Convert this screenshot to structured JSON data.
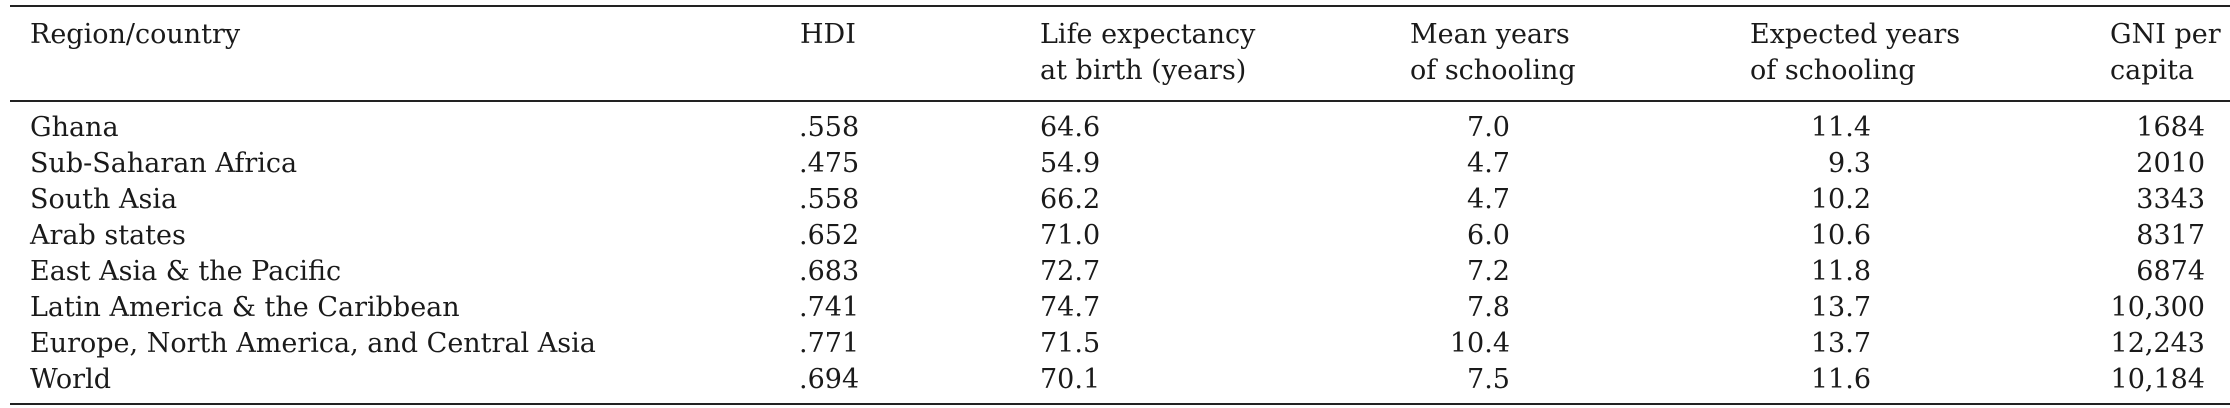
{
  "table": {
    "headers": {
      "region": "Region/country",
      "hdi": "HDI",
      "life_1": "Life expectancy",
      "life_2": "at birth (years)",
      "mys_1": "Mean years",
      "mys_2": "of schooling",
      "eys_1": "Expected years",
      "eys_2": "of schooling",
      "gni_1": "GNI per",
      "gni_2": "capita"
    },
    "rows": [
      {
        "region": "Ghana",
        "hdi": ".558",
        "life": "64.6",
        "mys": "7.0",
        "eys": "11.4",
        "gni": "1684"
      },
      {
        "region": "Sub-Saharan Africa",
        "hdi": ".475",
        "life": "54.9",
        "mys": "4.7",
        "eys": "9.3",
        "gni": "2010"
      },
      {
        "region": "South Asia",
        "hdi": ".558",
        "life": "66.2",
        "mys": "4.7",
        "eys": "10.2",
        "gni": "3343"
      },
      {
        "region": "Arab states",
        "hdi": ".652",
        "life": "71.0",
        "mys": "6.0",
        "eys": "10.6",
        "gni": "8317"
      },
      {
        "region": "East Asia & the Pacific",
        "hdi": ".683",
        "life": "72.7",
        "mys": "7.2",
        "eys": "11.8",
        "gni": "6874"
      },
      {
        "region": "Latin America & the Caribbean",
        "hdi": ".741",
        "life": "74.7",
        "mys": "7.8",
        "eys": "13.7",
        "gni": "10,300"
      },
      {
        "region": "Europe, North America, and Central Asia",
        "hdi": ".771",
        "life": "71.5",
        "mys": "10.4",
        "eys": "13.7",
        "gni": "12,243"
      },
      {
        "region": "World",
        "hdi": ".694",
        "life": "70.1",
        "mys": "7.5",
        "eys": "11.6",
        "gni": "10,184"
      }
    ]
  }
}
